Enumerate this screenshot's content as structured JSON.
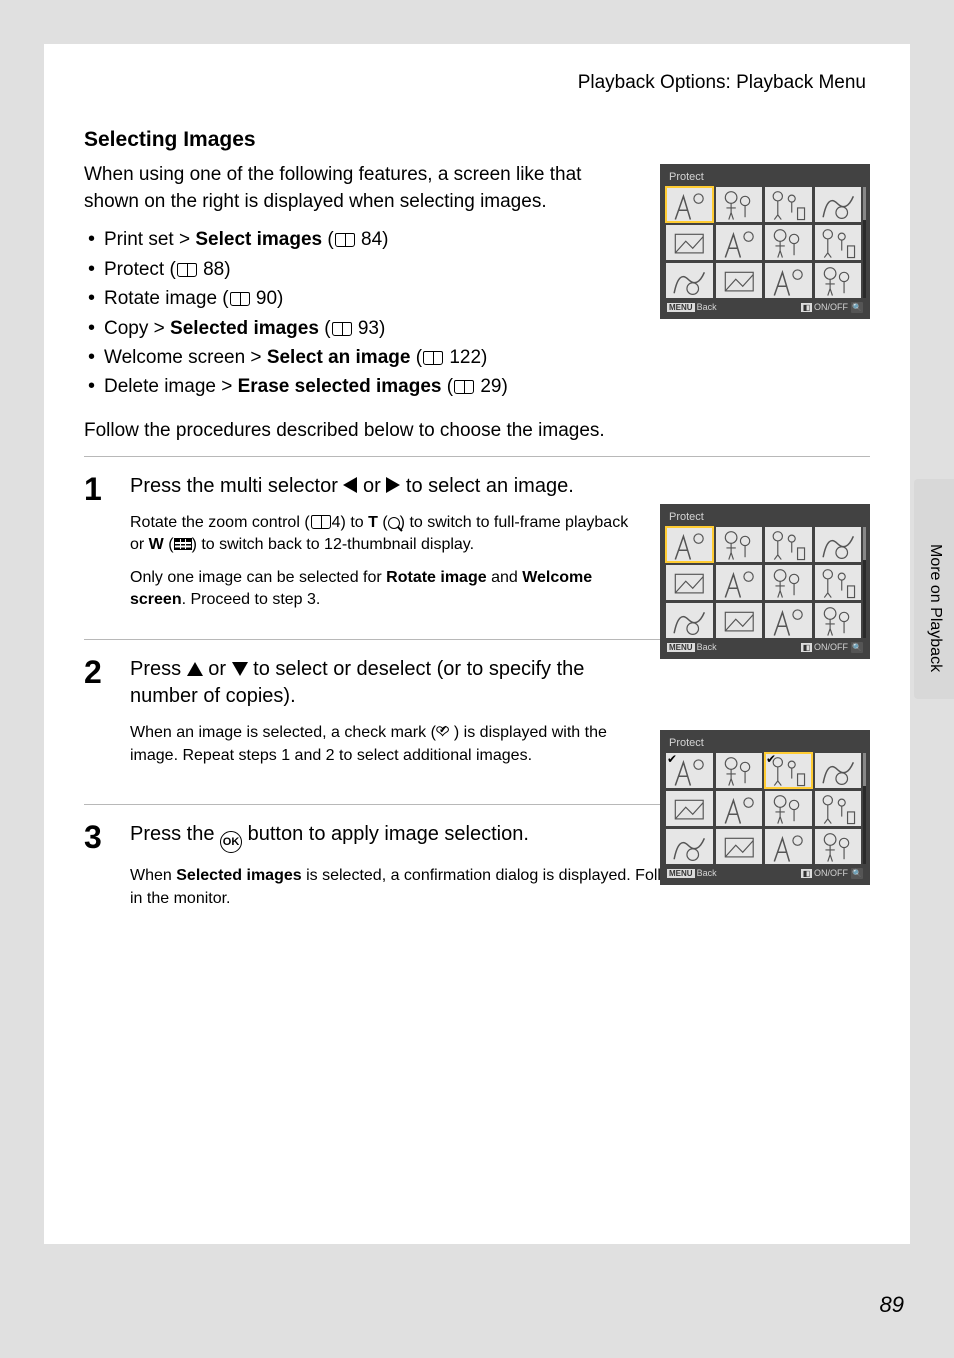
{
  "header": "Playback Options: Playback Menu",
  "section_title": "Selecting Images",
  "intro": "When using one of the following features, a screen like that shown on the right is displayed when selecting images.",
  "bullets": [
    {
      "pre": "Print set > ",
      "strong": "Select images",
      "page": "84"
    },
    {
      "pre": "Protect",
      "strong": "",
      "page": "88"
    },
    {
      "pre": "Rotate image",
      "strong": "",
      "page": "90"
    },
    {
      "pre": "Copy > ",
      "strong": "Selected images",
      "page": "93"
    },
    {
      "pre": "Welcome screen > ",
      "strong": "Select an image",
      "page": "122"
    },
    {
      "pre": "Delete image > ",
      "strong": "Erase selected images",
      "page": "29"
    }
  ],
  "follow": "Follow the procedures described below to choose the images.",
  "steps": {
    "s1": {
      "num": "1",
      "head_a": "Press the multi selector ",
      "head_b": " or ",
      "head_c": " to select an image.",
      "sub1_a": "Rotate the zoom control (",
      "sub1_page": "4",
      "sub1_b": ") to ",
      "sub1_T": "T",
      "sub1_c": " (",
      "sub1_d": ") to switch to full-frame playback or ",
      "sub1_W": "W",
      "sub1_e": " (",
      "sub1_f": ") to switch back to 12-thumbnail display.",
      "sub2_a": "Only one image can be selected for ",
      "sub2_b": "Rotate image",
      "sub2_c": " and ",
      "sub2_d": "Welcome screen",
      "sub2_e": ". Proceed to step 3."
    },
    "s2": {
      "num": "2",
      "head_a": "Press ",
      "head_b": " or ",
      "head_c": " to select or deselect (or to specify the number of copies).",
      "sub_a": "When an image is selected, a check mark (",
      "sub_b": ") is displayed with the image. Repeat steps 1 and 2 to select additional images."
    },
    "s3": {
      "num": "3",
      "head_a": "Press the ",
      "ok": "OK",
      "head_b": " button to apply image selection.",
      "sub_a": "When ",
      "sub_b": "Selected images",
      "sub_c": " is selected, a confirmation dialog is displayed. Follow the instructions displayed in the monitor."
    }
  },
  "lcd": {
    "title": "Protect",
    "back": "Back",
    "onoff": "ON/OFF",
    "menu": "MENU"
  },
  "side_label": "More on Playback",
  "page_num": "89",
  "colors": {
    "page_bg": "#e0e0e0",
    "lcd_bg": "#424242",
    "lcd_text": "#d4d4d4",
    "highlight": "#ffcc33",
    "divider": "#b8b8b8"
  }
}
